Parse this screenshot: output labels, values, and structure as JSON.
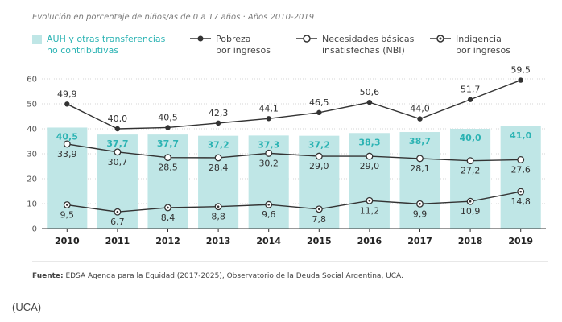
{
  "caption": "(UCA)",
  "chart_data": {
    "type": "bar",
    "subtitle": "Evolución en porcentaje de niños/as de 0 a 17 años  ·  Años 2010-2019",
    "source_label": "Fuente:",
    "source_text": " EDSA Agenda para la Equidad (2017-2025), Observatorio de la Deuda Social Argentina, UCA.",
    "categories": [
      "2010",
      "2011",
      "2012",
      "2013",
      "2014",
      "2015",
      "2016",
      "2017",
      "2018",
      "2019"
    ],
    "ylim": [
      0,
      60
    ],
    "yticks": [
      "0",
      "10",
      "20",
      "30",
      "40",
      "50",
      "60"
    ],
    "grid": true,
    "legend_position": "top",
    "series": [
      {
        "key": "auh",
        "name_lines": [
          "AUH y otras transferencias",
          "no contributivas"
        ],
        "render": "bar",
        "color": "#bfe6e6",
        "label_color": "#2bb3b3",
        "values": [
          40.5,
          37.7,
          37.7,
          37.2,
          37.3,
          37.2,
          38.3,
          38.7,
          40.0,
          41.0
        ],
        "labels": [
          "40,5",
          "37,7",
          "37,7",
          "37,2",
          "37,3",
          "37,2",
          "38,3",
          "38,7",
          "40,0",
          "41,0"
        ]
      },
      {
        "key": "pobreza",
        "name_lines": [
          "Pobreza",
          "por ingresos"
        ],
        "render": "line",
        "marker": "filled",
        "color": "#333333",
        "values": [
          49.9,
          40.0,
          40.5,
          42.3,
          44.1,
          46.5,
          50.6,
          44.0,
          51.7,
          59.5
        ],
        "labels": [
          "49,9",
          "40,0",
          "40,5",
          "42,3",
          "44,1",
          "46,5",
          "50,6",
          "44,0",
          "51,7",
          "59,5"
        ]
      },
      {
        "key": "nbi",
        "name_lines": [
          "Necesidades básicas",
          "insatisfechas (NBI)"
        ],
        "render": "line",
        "marker": "open",
        "color": "#333333",
        "values": [
          33.9,
          30.7,
          28.5,
          28.4,
          30.2,
          29.0,
          29.0,
          28.1,
          27.2,
          27.6
        ],
        "labels": [
          "33,9",
          "30,7",
          "28,5",
          "28,4",
          "30,2",
          "29,0",
          "29,0",
          "28,1",
          "27,2",
          "27,6"
        ]
      },
      {
        "key": "indigencia",
        "name_lines": [
          "Indigencia",
          "por ingresos"
        ],
        "render": "line",
        "marker": "dot",
        "color": "#333333",
        "values": [
          9.5,
          6.7,
          8.4,
          8.8,
          9.6,
          7.8,
          11.2,
          9.9,
          10.9,
          14.8
        ],
        "labels": [
          "9,5",
          "6,7",
          "8,4",
          "8,8",
          "9,6",
          "7,8",
          "11,2",
          "9,9",
          "10,9",
          "14,8"
        ]
      }
    ]
  }
}
